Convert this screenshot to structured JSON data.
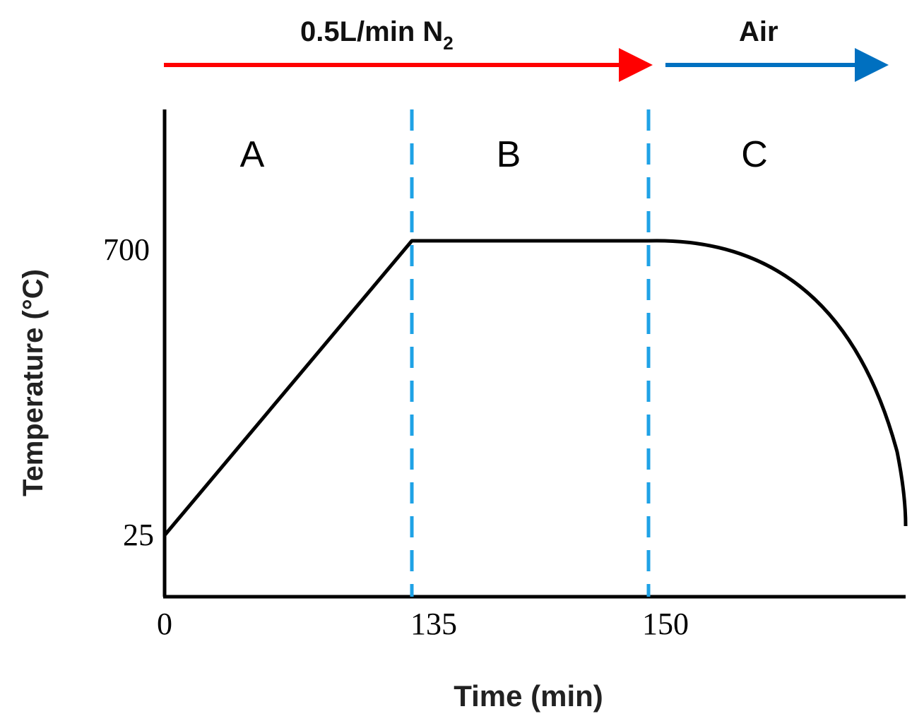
{
  "chart_data": {
    "type": "line",
    "xlabel": "Time (min)",
    "ylabel": "Temperature (°C)",
    "x_ticks": [
      "0",
      "135",
      "150"
    ],
    "y_ticks": [
      "25",
      "700"
    ],
    "regions": [
      "A",
      "B",
      "C"
    ],
    "boundaries_x": [
      135,
      150
    ],
    "flow_annotations": [
      {
        "label_main": "0.5L/min N",
        "label_sub": "2",
        "color": "#ff0000"
      },
      {
        "label_main": "Air",
        "label_sub": "",
        "color": "#0070c0"
      }
    ],
    "boundary_color": "#1fa2e6",
    "line_color": "#000000",
    "series": [
      {
        "x": [
          0,
          135,
          150
        ],
        "y": [
          25,
          700,
          700
        ]
      }
    ]
  }
}
